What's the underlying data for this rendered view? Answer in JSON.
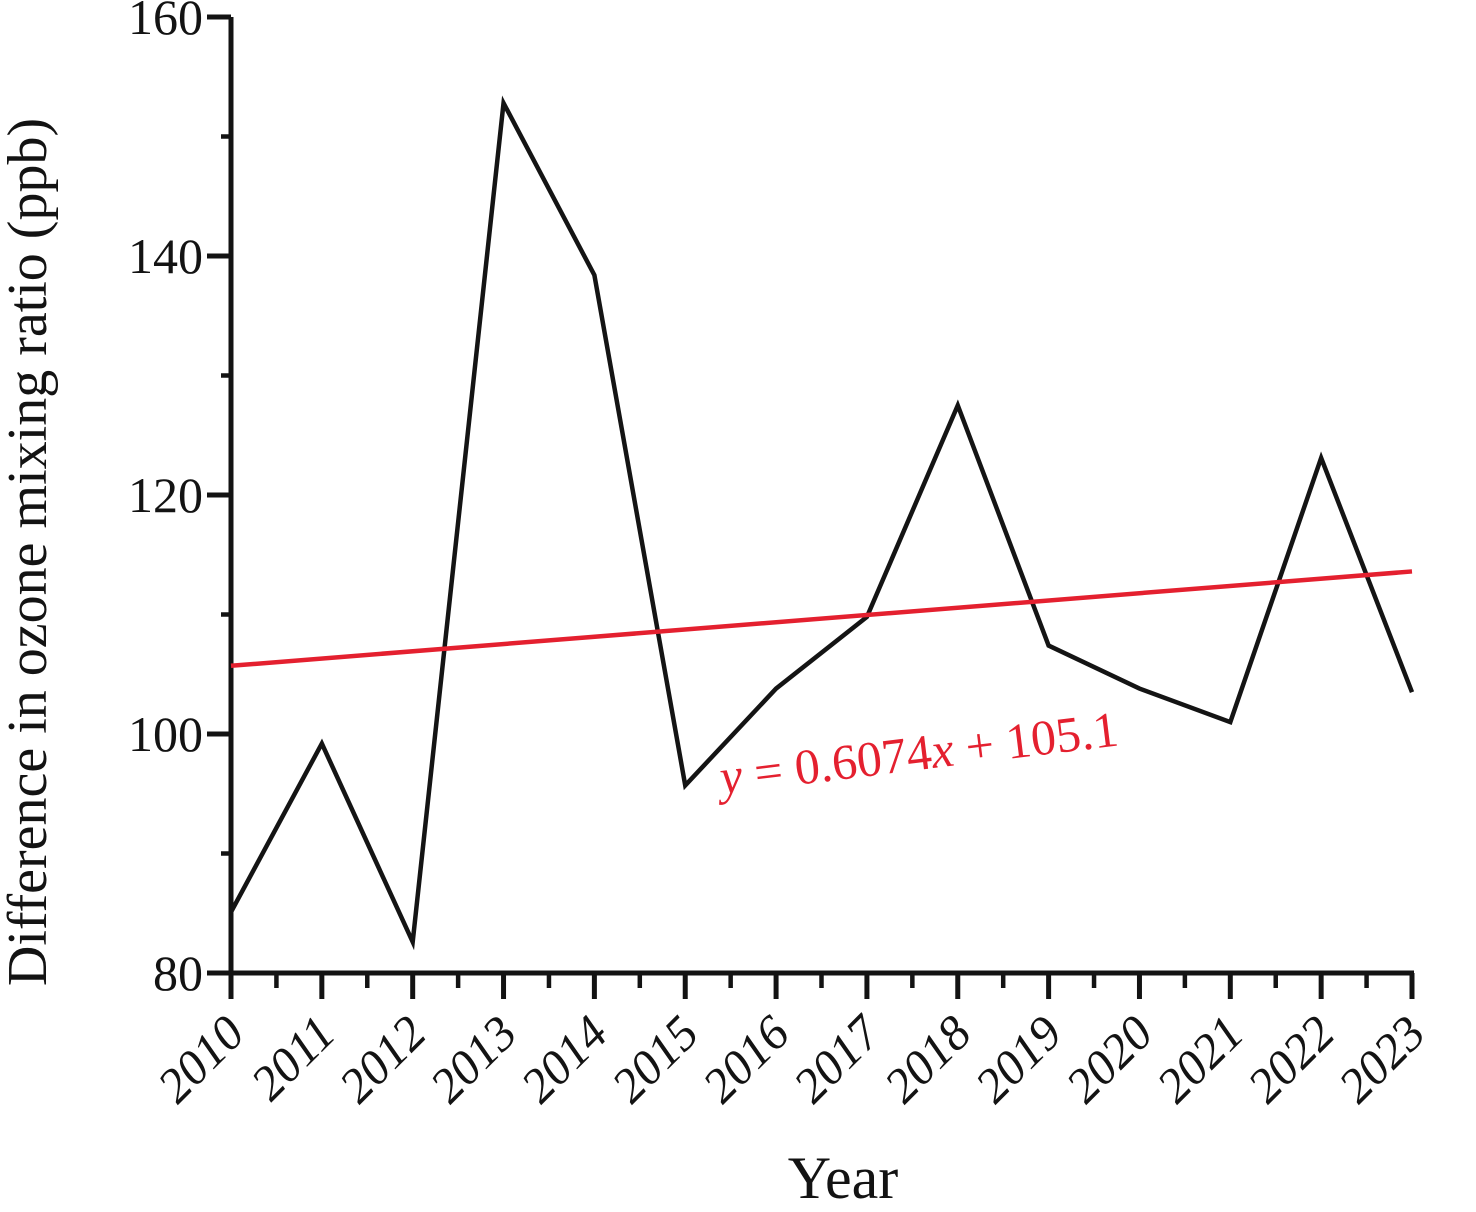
{
  "figure": {
    "background_color": "#ffffff",
    "text_color": "#131313"
  },
  "chart_data": {
    "type": "line",
    "title": "",
    "xlabel": "Year",
    "ylabel": "Difference in ozone mixing ratio (ppb)",
    "x": [
      2010,
      2011,
      2012,
      2013,
      2014,
      2015,
      2016,
      2017,
      2018,
      2019,
      2020,
      2021,
      2022,
      2023
    ],
    "xtick_labels": [
      "2010",
      "2011",
      "2012",
      "2013",
      "2014",
      "2015",
      "2016",
      "2017",
      "2018",
      "2019",
      "2020",
      "2021",
      "2022",
      "2023"
    ],
    "ylim": [
      80,
      160
    ],
    "ytick_major": [
      80,
      100,
      120,
      140,
      160
    ],
    "ytick_minor": [
      90,
      110,
      130,
      150
    ],
    "xtick_minor_at_half_years": true,
    "grid": false,
    "legend": "none",
    "series": [
      {
        "name": "Difference in ozone mixing ratio",
        "color": "#141414",
        "values": [
          85.1,
          99.2,
          82.6,
          152.8,
          138.4,
          95.7,
          103.8,
          109.8,
          127.5,
          107.4,
          103.8,
          101.0,
          123.1,
          103.5
        ]
      }
    ],
    "trendline": {
      "slope": 0.6074,
      "intercept": 105.1,
      "x_index_start": 1,
      "x_index_end": 14,
      "color": "#e4202f",
      "equation_text": "y = 0.6074x + 105.1",
      "equation_segments": [
        {
          "text": "y",
          "italic": true
        },
        {
          "text": " = 0.6074",
          "italic": false
        },
        {
          "text": "x",
          "italic": true
        },
        {
          "text": " + 105.1",
          "italic": false
        }
      ]
    }
  }
}
